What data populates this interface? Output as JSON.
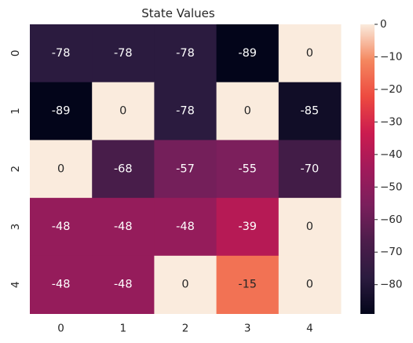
{
  "chart_data": {
    "type": "heatmap",
    "title": "State Values",
    "x_tick_labels": [
      "0",
      "1",
      "2",
      "3",
      "4"
    ],
    "y_tick_labels": [
      "0",
      "1",
      "2",
      "3",
      "4"
    ],
    "values": [
      [
        -78,
        -78,
        -78,
        -89,
        0
      ],
      [
        -89,
        0,
        -78,
        0,
        -85
      ],
      [
        0,
        -68,
        -57,
        -55,
        -70
      ],
      [
        -48,
        -48,
        -48,
        -39,
        0
      ],
      [
        -48,
        -48,
        0,
        -15,
        0
      ]
    ],
    "annotations": [
      [
        "-78",
        "-78",
        "-78",
        "-89",
        "0"
      ],
      [
        "-89",
        "0",
        "-78",
        "0",
        "-85"
      ],
      [
        "0",
        "-68",
        "-57",
        "-55",
        "-70"
      ],
      [
        "-48",
        "-48",
        "-48",
        "-39",
        "0"
      ],
      [
        "-48",
        "-48",
        "0",
        "-15",
        "0"
      ]
    ],
    "color_range": [
      -89,
      0
    ],
    "colormap": "rocket",
    "colorbar_ticks": [
      0,
      -10,
      -20,
      -30,
      -40,
      -50,
      -60,
      -70,
      -80
    ],
    "colorbar_tick_labels": [
      "0",
      "−10",
      "−20",
      "−30",
      "−40",
      "−50",
      "−60",
      "−70",
      "−80"
    ],
    "xlabel": "",
    "ylabel": ""
  }
}
